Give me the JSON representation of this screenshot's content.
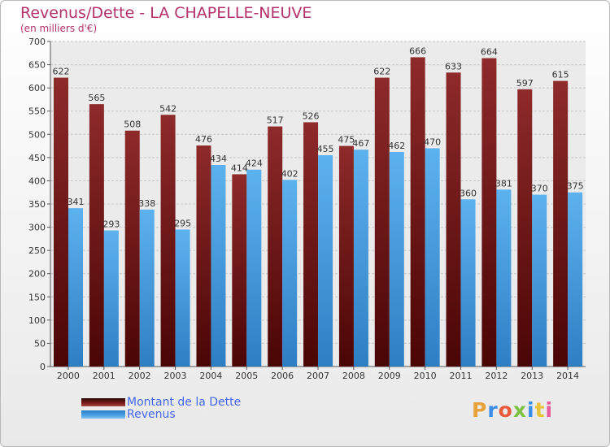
{
  "chart_data": {
    "type": "bar",
    "title": "Revenus/Dette - LA CHAPELLE-NEUVE",
    "subtitle": "(en milliers d'€)",
    "categories": [
      "2000",
      "2001",
      "2002",
      "2003",
      "2004",
      "2005",
      "2006",
      "2007",
      "2008",
      "2009",
      "2010",
      "2011",
      "2012",
      "2013",
      "2014"
    ],
    "series": [
      {
        "name": "Montant de la Dette",
        "color": "#7b1c1c",
        "values": [
          622,
          565,
          508,
          542,
          476,
          414,
          517,
          526,
          475,
          622,
          666,
          633,
          664,
          597,
          615
        ]
      },
      {
        "name": "Revenus",
        "color": "#4aa3e6",
        "values": [
          341,
          293,
          338,
          295,
          434,
          424,
          402,
          455,
          467,
          462,
          470,
          360,
          381,
          370,
          375
        ]
      }
    ],
    "ylim": [
      0,
      700
    ],
    "yticks": [
      0,
      50,
      100,
      150,
      200,
      250,
      300,
      350,
      400,
      450,
      500,
      550,
      600,
      650,
      700
    ],
    "grid": true,
    "legend_position": "bottom-left"
  },
  "branding": {
    "logo_letters": [
      "P",
      "r",
      "o",
      "x",
      "i",
      "t",
      "i"
    ],
    "logo_colors": [
      "#e8a23a",
      "#3a8de8",
      "#e85a3a",
      "#7bc143",
      "#3a8de8",
      "#e8c33a",
      "#e85a9a"
    ]
  }
}
